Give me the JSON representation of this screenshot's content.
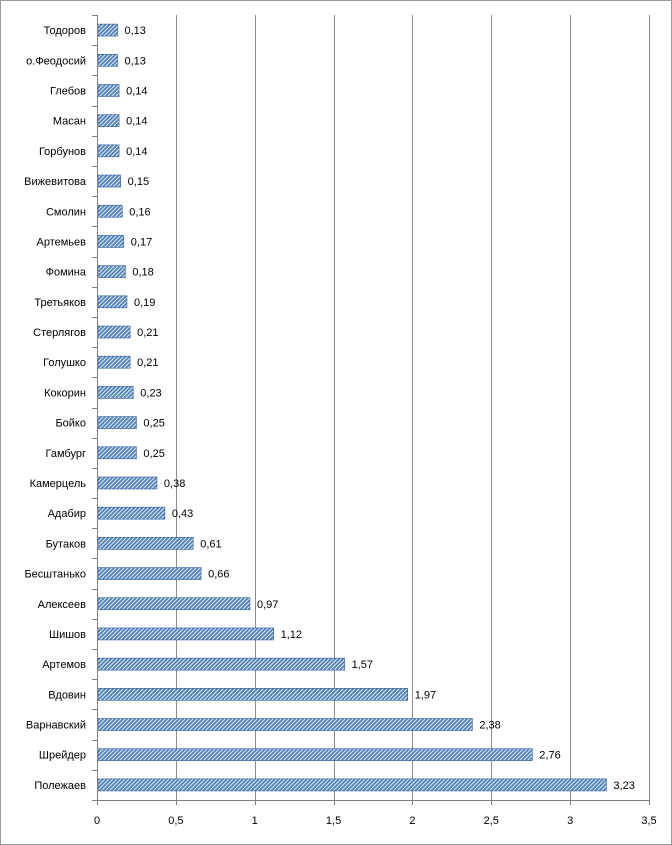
{
  "colors": {
    "bar": "#4f81bd",
    "bar_hatch": "#dce6f2",
    "bar_edge": "#2f5f9c",
    "grid": "#8c8c8c",
    "axis": "#7f7f7f"
  },
  "chart_data": {
    "type": "bar",
    "orientation": "horizontal",
    "title": "",
    "xlabel": "",
    "ylabel": "",
    "xlim": [
      0,
      3.5
    ],
    "grid": true,
    "legend": "none",
    "x_ticks": [
      "0",
      "0,5",
      "1",
      "1,5",
      "2",
      "2,5",
      "3",
      "3,5"
    ],
    "x_tick_values": [
      0,
      0.5,
      1,
      1.5,
      2,
      2.5,
      3,
      3.5
    ],
    "categories": [
      "Тодоров",
      "о.Феодосий",
      "Глебов",
      "Масан",
      "Горбунов",
      "Вижевитова",
      "Смолин",
      "Артемьев",
      "Фомина",
      "Третьяков",
      "Стерлягов",
      "Голушко",
      "Кокорин",
      "Бойко",
      "Гамбург",
      "Камерцель",
      "Адабир",
      "Бутаков",
      "Бесштанько",
      "Алексеев",
      "Шишов",
      "Артемов",
      "Вдовин",
      "Варнавский",
      "Шрейдер",
      "Полежаев"
    ],
    "values": [
      0.13,
      0.13,
      0.14,
      0.14,
      0.14,
      0.15,
      0.16,
      0.17,
      0.18,
      0.19,
      0.21,
      0.21,
      0.23,
      0.25,
      0.25,
      0.38,
      0.43,
      0.61,
      0.66,
      0.97,
      1.12,
      1.57,
      1.97,
      2.38,
      2.76,
      3.23
    ],
    "value_labels": [
      "0,13",
      "0,13",
      "0,14",
      "0,14",
      "0,14",
      "0,15",
      "0,16",
      "0,17",
      "0,18",
      "0,19",
      "0,21",
      "0,21",
      "0,23",
      "0,25",
      "0,25",
      "0,38",
      "0,43",
      "0,61",
      "0,66",
      "0,97",
      "1,12",
      "1,57",
      "1,97",
      "2,38",
      "2,76",
      "3,23"
    ]
  }
}
